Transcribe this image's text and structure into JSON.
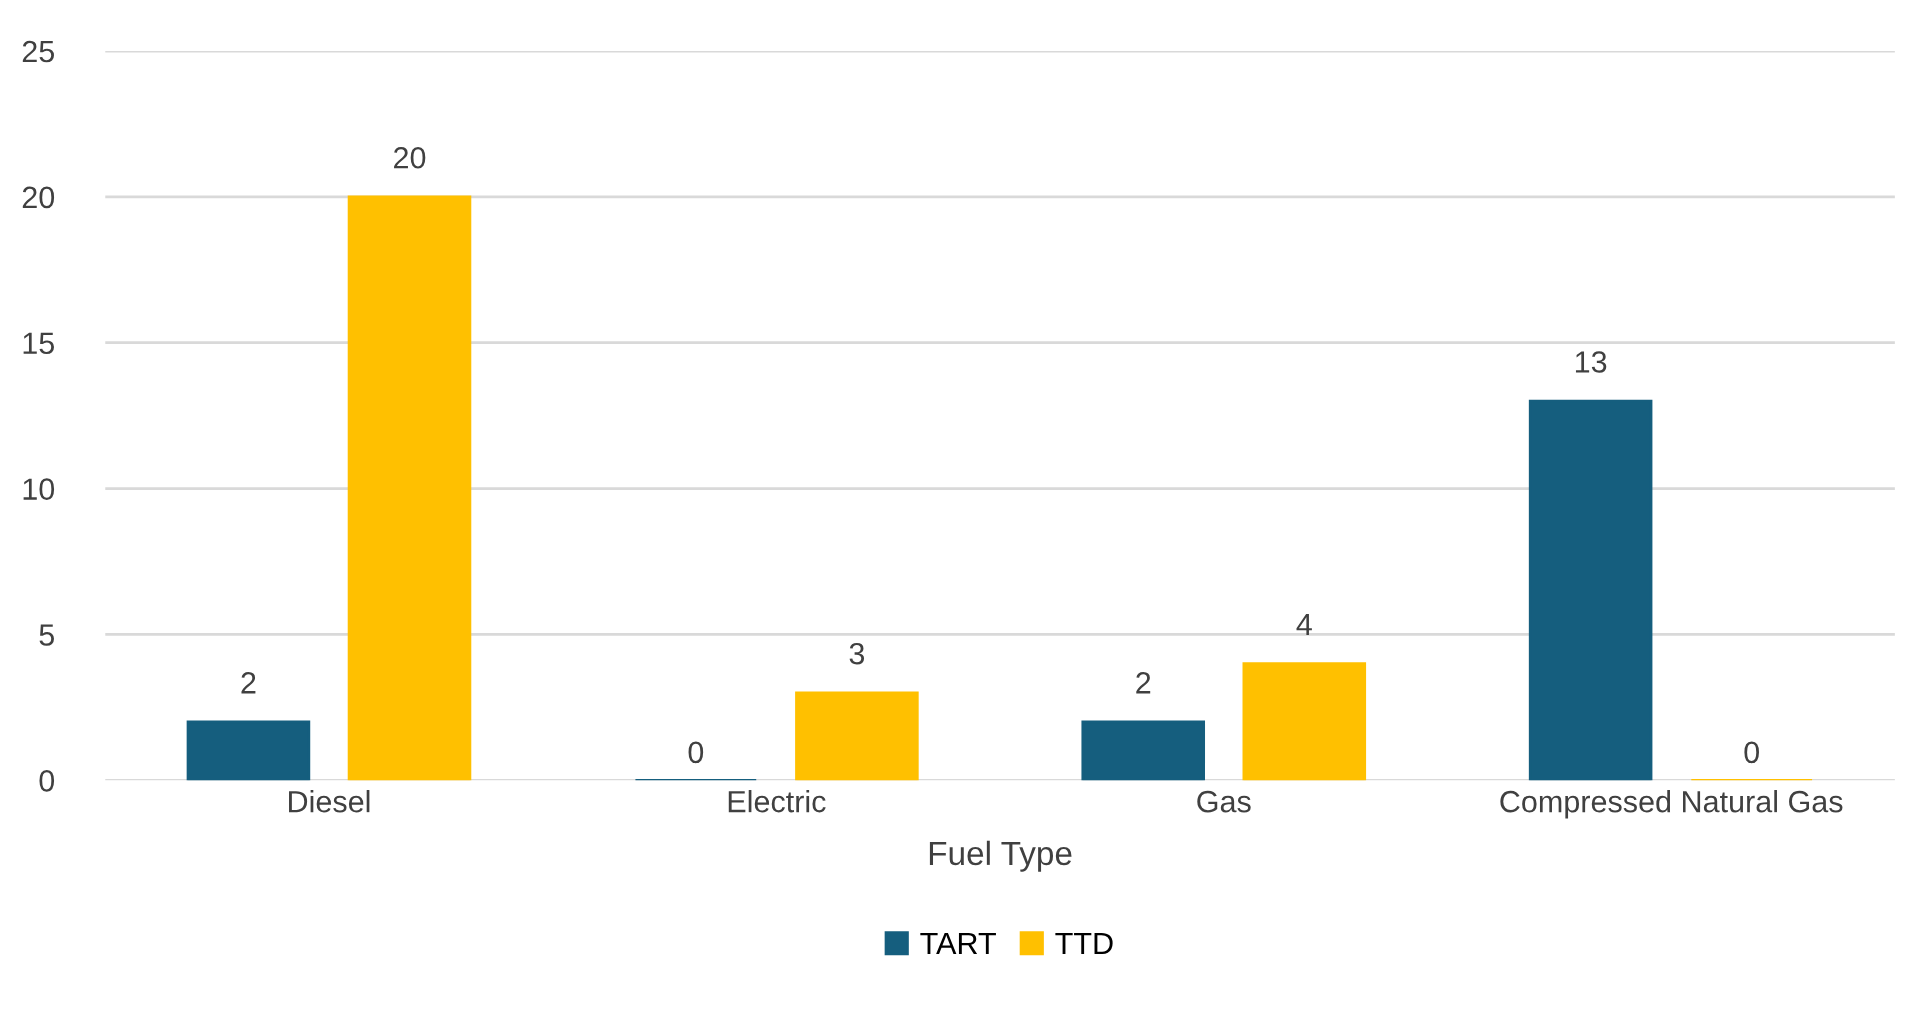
{
  "chart_data": {
    "type": "bar",
    "xlabel": "Fuel Type",
    "categories": [
      "Diesel",
      "Electric",
      "Gas",
      "Compressed Natural Gas"
    ],
    "series": [
      {
        "name": "TART",
        "color": "#155e7e",
        "values": [
          2,
          0,
          2,
          13
        ]
      },
      {
        "name": "TTD",
        "color": "#ffc000",
        "values": [
          20,
          3,
          4,
          0
        ]
      }
    ],
    "ylim": [
      0,
      25
    ],
    "yticks": [
      0,
      5,
      10,
      15,
      20,
      25
    ],
    "grid": "y",
    "legend": "bottom",
    "data_labels": true
  }
}
